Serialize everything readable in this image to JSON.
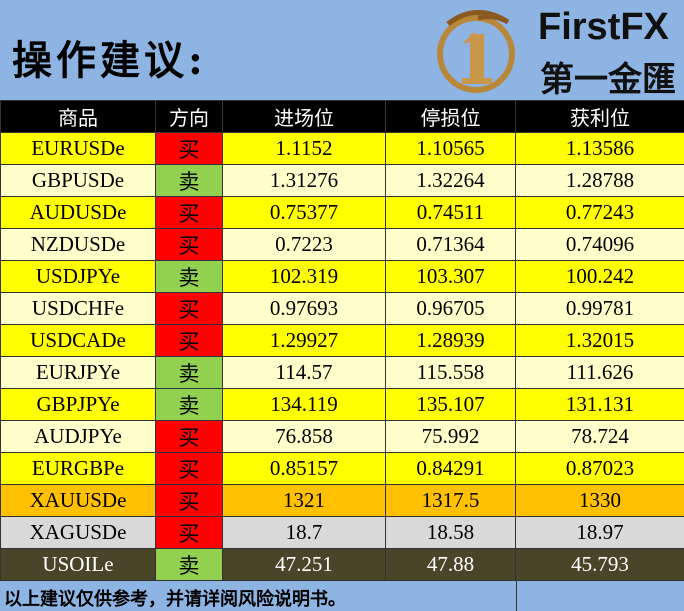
{
  "header": {
    "title": "操作建议:",
    "logo": {
      "name": "FirstFX",
      "subtitle": "第一金匯"
    }
  },
  "table": {
    "columns": [
      "商品",
      "方向",
      "进场位",
      "停损位",
      "获利位"
    ],
    "rows": [
      [
        "EURUSDe",
        "买",
        "1.1152",
        "1.10565",
        "1.13586"
      ],
      [
        "GBPUSDe",
        "卖",
        "1.31276",
        "1.32264",
        "1.28788"
      ],
      [
        "AUDUSDe",
        "买",
        "0.75377",
        "0.74511",
        "0.77243"
      ],
      [
        "NZDUSDe",
        "买",
        "0.7223",
        "0.71364",
        "0.74096"
      ],
      [
        "USDJPYe",
        "卖",
        "102.319",
        "103.307",
        "100.242"
      ],
      [
        "USDCHFe",
        "买",
        "0.97693",
        "0.96705",
        "0.99781"
      ],
      [
        "USDCADe",
        "买",
        "1.29927",
        "1.28939",
        "1.32015"
      ],
      [
        "EURJPYe",
        "卖",
        "114.57",
        "115.558",
        "111.626"
      ],
      [
        "GBPJPYe",
        "卖",
        "134.119",
        "135.107",
        "131.131"
      ],
      [
        "AUDJPYe",
        "买",
        "76.858",
        "75.992",
        "78.724"
      ],
      [
        "EURGBPe",
        "买",
        "0.85157",
        "0.84291",
        "0.87023"
      ],
      [
        "XAUUSDe",
        "买",
        "1321",
        "1317.5",
        "1330"
      ],
      [
        "XAGUSDe",
        "买",
        "18.7",
        "18.58",
        "18.97"
      ],
      [
        "USOILe",
        "卖",
        "47.251",
        "47.88",
        "45.793"
      ]
    ]
  },
  "footer": "以上建议仅供参考，并请详阅风险说明书。"
}
